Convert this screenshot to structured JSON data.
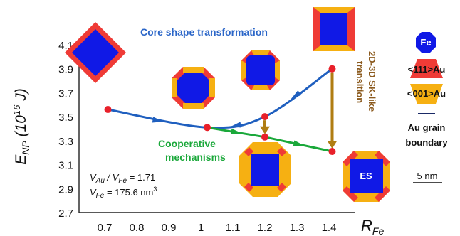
{
  "colors": {
    "blue_line": "#1f5fbf",
    "green_line": "#1aa83a",
    "arrow_brown": "#b07d12",
    "marker_red": "#e8202a",
    "fe_blue": "#1019e6",
    "au111_red": "#ef3b36",
    "au001_gold": "#f6b012",
    "boundary_navy": "#1a2a66",
    "title_blue": "#2b66c8",
    "title_green": "#1aa83a",
    "sk_brown": "#8b5a1e"
  },
  "labels": {
    "core_title": "Core shape transformation",
    "coop_line1": "Cooperative",
    "coop_line2": "mechanisms",
    "sk_line1": "2D-3D SK-like",
    "sk_line2": "transition",
    "ratio_label": "V",
    "ratio_sub_au": "Au",
    "ratio_sep": " / V",
    "ratio_sub_fe": "Fe",
    "ratio_value": " = 1.71",
    "vfe_label": "V",
    "vfe_sub": "Fe",
    "vfe_value": " = 175.6 nm",
    "vfe_sup": "3",
    "es": "ES",
    "scale": "5 nm"
  },
  "legend": {
    "fe": "Fe",
    "au111": "<111>Au",
    "au001": "<001>Au",
    "boundary_line1": "Au grain",
    "boundary_line2": "boundary"
  },
  "chart_data": {
    "type": "line",
    "ylabel_main": "E",
    "ylabel_sub": "NP",
    "ylabel_open": " (10",
    "ylabel_sup": "16",
    "ylabel_close": " J)",
    "xlabel_main": "R",
    "xlabel_sub": "Fe",
    "xlim": [
      0.62,
      1.48
    ],
    "ylim": [
      2.7,
      4.1
    ],
    "xticks": [
      "0.7",
      "0.8",
      "0.9",
      "1",
      "1.1",
      "1.2",
      "1.3",
      "1.4"
    ],
    "yticks": [
      "2.7",
      "2.9",
      "3.1",
      "3.3",
      "3.5",
      "3.7",
      "3.9",
      "4.1"
    ],
    "series": [
      {
        "points": [
          [
            0.71,
            3.56
          ],
          [
            1.02,
            3.41
          ],
          [
            1.2,
            3.5
          ],
          [
            1.41,
            3.9
          ]
        ],
        "style": "curve"
      },
      {
        "points": [
          [
            1.02,
            3.41
          ],
          [
            1.2,
            3.33
          ],
          [
            1.41,
            3.21
          ]
        ],
        "style": "line"
      }
    ],
    "transitions": [
      {
        "x": 1.2,
        "from": 3.5,
        "to": 3.33
      },
      {
        "x": 1.41,
        "from": 3.9,
        "to": 3.21
      }
    ]
  }
}
